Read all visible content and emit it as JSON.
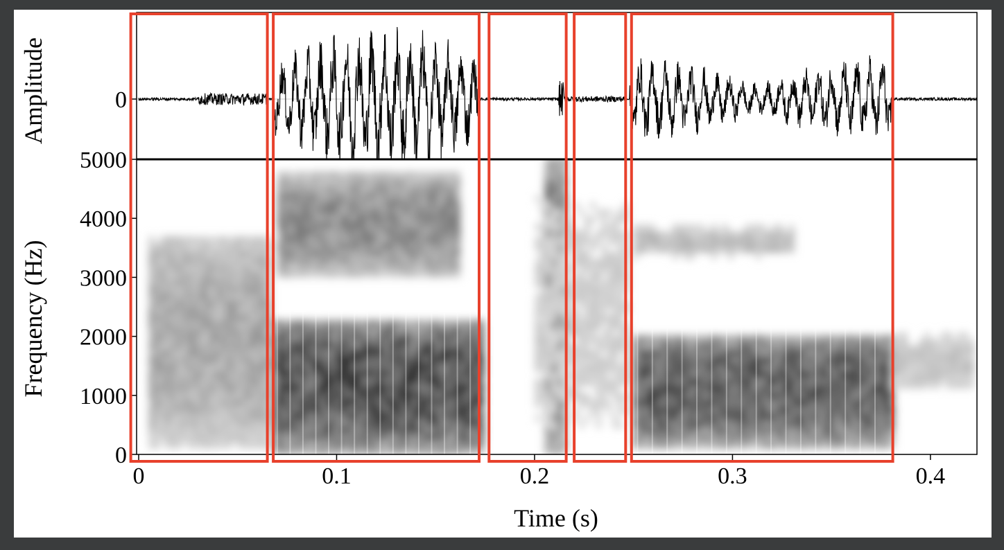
{
  "chart_data": [
    {
      "type": "line",
      "panel": "waveform",
      "title": "",
      "xlabel": "",
      "ylabel": "Amplitude",
      "ytick_labels": [
        "0"
      ],
      "ylim": [
        -1,
        1
      ],
      "xlim": [
        0,
        0.4235
      ],
      "grid": false,
      "legend": "none",
      "segments": [
        {
          "t_start": 0.0,
          "t_end": 0.03,
          "amplitude": 0.02,
          "kind": "noise"
        },
        {
          "t_start": 0.03,
          "t_end": 0.065,
          "amplitude": 0.08,
          "kind": "noise"
        },
        {
          "t_start": 0.068,
          "t_end": 0.172,
          "amplitude": 0.85,
          "kind": "voiced"
        },
        {
          "t_start": 0.172,
          "t_end": 0.212,
          "amplitude": 0.02,
          "kind": "silence"
        },
        {
          "t_start": 0.212,
          "t_end": 0.215,
          "amplitude": 0.25,
          "kind": "burst"
        },
        {
          "t_start": 0.215,
          "t_end": 0.246,
          "amplitude": 0.04,
          "kind": "noise"
        },
        {
          "t_start": 0.248,
          "t_end": 0.38,
          "amplitude": 0.5,
          "kind": "voiced"
        },
        {
          "t_start": 0.38,
          "t_end": 0.4235,
          "amplitude": 0.02,
          "kind": "silence"
        }
      ]
    },
    {
      "type": "heatmap",
      "panel": "spectrogram",
      "title": "",
      "xlabel": "Time (s)",
      "ylabel": "Frequency (Hz)",
      "xlim": [
        0,
        0.4235
      ],
      "ylim": [
        0,
        5000
      ],
      "xticks": [
        0,
        0.1,
        0.2,
        0.3,
        0.4
      ],
      "xtick_labels": [
        "0",
        "0.1",
        "0.2",
        "0.3",
        "0.4"
      ],
      "yticks": [
        0,
        1000,
        2000,
        3000,
        4000,
        5000
      ],
      "ytick_labels": [
        "0",
        "1000",
        "2000",
        "3000",
        "4000",
        "5000"
      ],
      "grid": false,
      "legend": "none",
      "colormap": "grayscale (dark = high energy)",
      "energy_regions": [
        {
          "t_start": 0.005,
          "t_end": 0.065,
          "f_low": 100,
          "f_high": 3700,
          "intensity": 0.45
        },
        {
          "t_start": 0.068,
          "t_end": 0.172,
          "f_low": 0,
          "f_high": 2200,
          "intensity": 0.95
        },
        {
          "t_start": 0.07,
          "t_end": 0.16,
          "f_low": 3000,
          "f_high": 4700,
          "intensity": 0.6
        },
        {
          "t_start": 0.205,
          "t_end": 0.216,
          "f_low": 0,
          "f_high": 5000,
          "intensity": 0.8
        },
        {
          "t_start": 0.2,
          "t_end": 0.245,
          "f_low": 200,
          "f_high": 4500,
          "intensity": 0.25
        },
        {
          "t_start": 0.25,
          "t_end": 0.38,
          "f_low": 100,
          "f_high": 2000,
          "intensity": 0.85
        },
        {
          "t_start": 0.25,
          "t_end": 0.33,
          "f_low": 3300,
          "f_high": 3800,
          "intensity": 0.35
        },
        {
          "t_start": 0.38,
          "t_end": 0.42,
          "f_low": 1000,
          "f_high": 2000,
          "intensity": 0.3
        }
      ]
    }
  ],
  "segment_boxes": {
    "color": "#e8412c",
    "intervals": [
      [
        -0.004,
        0.065
      ],
      [
        0.068,
        0.172
      ],
      [
        0.177,
        0.216
      ],
      [
        0.22,
        0.246
      ],
      [
        0.249,
        0.381
      ]
    ]
  }
}
